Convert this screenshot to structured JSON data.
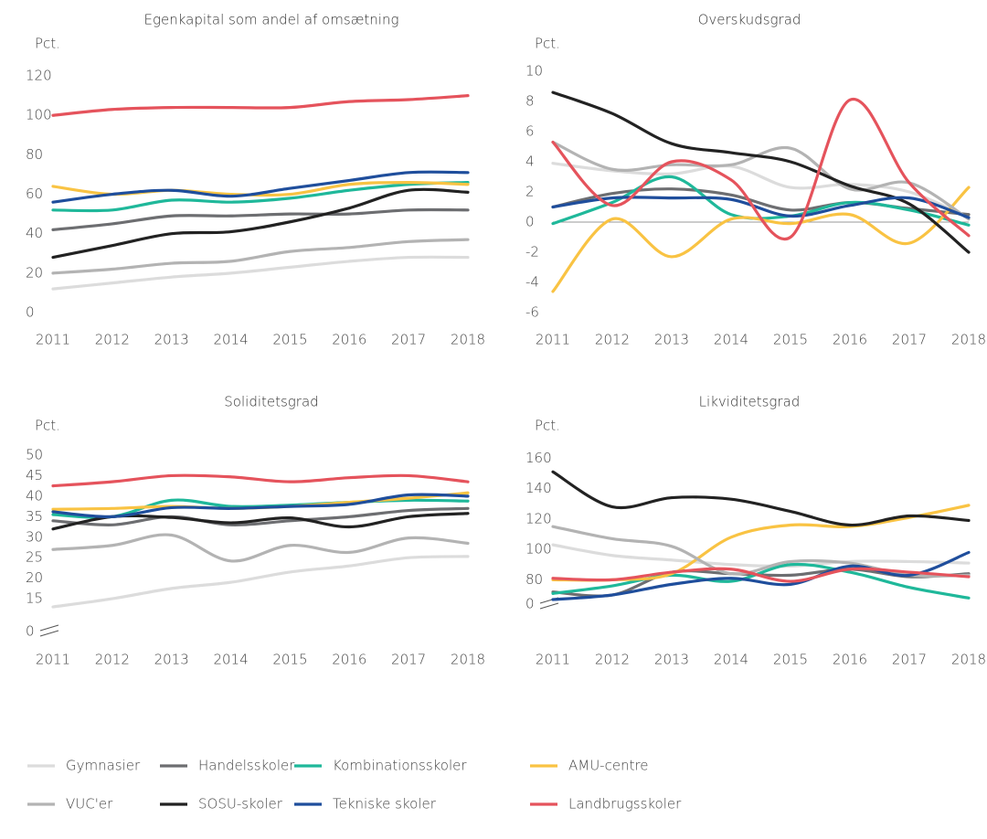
{
  "chart_data": [
    {
      "type": "line",
      "title": "Egenkapital som andel af omsætning",
      "ylabel": "Pct.",
      "x": [
        2011,
        2012,
        2013,
        2014,
        2015,
        2016,
        2017,
        2018
      ],
      "xlim": [
        2011,
        2018
      ],
      "ylim": [
        0,
        130
      ],
      "yticks": [
        0,
        20,
        40,
        60,
        80,
        100,
        120
      ],
      "series": [
        {
          "color": "#dcdcdc",
          "values": [
            12,
            15,
            18,
            20,
            23,
            26,
            28,
            28
          ]
        },
        {
          "color": "#6d6e71",
          "values": [
            42,
            45,
            49,
            49,
            50,
            50,
            52,
            52
          ]
        },
        {
          "color": "#1fb89a",
          "values": [
            52,
            52,
            57,
            56,
            58,
            62,
            65,
            66
          ]
        },
        {
          "color": "#f9c343",
          "values": [
            64,
            60,
            62,
            60,
            60,
            65,
            66,
            65
          ]
        },
        {
          "color": "#b3b3b3",
          "values": [
            20,
            22,
            25,
            26,
            31,
            33,
            36,
            37
          ]
        },
        {
          "color": "#222222",
          "values": [
            28,
            34,
            40,
            41,
            46,
            53,
            62,
            61
          ]
        },
        {
          "color": "#1f4e9c",
          "values": [
            56,
            60,
            62,
            59,
            63,
            67,
            71,
            71
          ]
        },
        {
          "color": "#e5535c",
          "values": [
            100,
            103,
            104,
            104,
            104,
            107,
            108,
            110
          ]
        }
      ]
    },
    {
      "type": "line",
      "title": "Overskudsgrad",
      "ylabel": "Pct.",
      "x": [
        2011,
        2012,
        2013,
        2014,
        2015,
        2016,
        2017,
        2018
      ],
      "xlim": [
        2011,
        2018
      ],
      "ylim": [
        -6,
        11
      ],
      "yticks": [
        -6,
        -4,
        -2,
        0,
        2,
        4,
        6,
        8,
        10
      ],
      "zero_line": true,
      "series": [
        {
          "color": "#dcdcdc",
          "values": [
            3.9,
            3.4,
            3.2,
            3.7,
            2.3,
            2.5,
            2.0,
            0.3
          ]
        },
        {
          "color": "#6d6e71",
          "values": [
            1.0,
            1.9,
            2.2,
            1.8,
            0.8,
            1.3,
            0.9,
            0.5
          ]
        },
        {
          "color": "#1fb89a",
          "values": [
            -0.1,
            1.3,
            3.0,
            0.5,
            0.4,
            1.3,
            0.8,
            -0.2
          ]
        },
        {
          "color": "#f9c343",
          "values": [
            -4.6,
            0.2,
            -2.3,
            0.2,
            -0.1,
            0.5,
            -1.4,
            2.3
          ]
        },
        {
          "color": "#b3b3b3",
          "values": [
            5.3,
            3.5,
            3.8,
            3.8,
            4.9,
            2.2,
            2.6,
            0.2
          ]
        },
        {
          "color": "#222222",
          "values": [
            8.6,
            7.2,
            5.2,
            4.6,
            4.0,
            2.4,
            1.2,
            -2.0
          ]
        },
        {
          "color": "#1f4e9c",
          "values": [
            1.0,
            1.6,
            1.6,
            1.5,
            0.4,
            1.1,
            1.6,
            0.3
          ]
        },
        {
          "color": "#e5535c",
          "values": [
            5.3,
            1.1,
            4.0,
            2.8,
            -1.0,
            8.1,
            2.6,
            -0.9
          ]
        }
      ]
    },
    {
      "type": "line",
      "title": "Soliditetsgrad",
      "ylabel": "Pct.",
      "x": [
        2011,
        2012,
        2013,
        2014,
        2015,
        2016,
        2017,
        2018
      ],
      "xlim": [
        2011,
        2018
      ],
      "ylim": [
        7,
        52
      ],
      "yticks": [
        0,
        15,
        20,
        25,
        30,
        35,
        40,
        45,
        50
      ],
      "axis_break": true,
      "series": [
        {
          "color": "#dcdcdc",
          "values": [
            13,
            15,
            17.5,
            19,
            21.5,
            23,
            25,
            25.3
          ]
        },
        {
          "color": "#6d6e71",
          "values": [
            34,
            33,
            35,
            33,
            34,
            35,
            36.5,
            37
          ]
        },
        {
          "color": "#1fb89a",
          "values": [
            35.5,
            35,
            39,
            37.5,
            37.8,
            38.5,
            39,
            38.8
          ]
        },
        {
          "color": "#f9c343",
          "values": [
            36.8,
            37,
            37.5,
            37,
            37.5,
            38.5,
            39.5,
            40.8
          ]
        },
        {
          "color": "#b3b3b3",
          "values": [
            27,
            28,
            30.5,
            24.2,
            28,
            26.3,
            29.8,
            28.5
          ]
        },
        {
          "color": "#222222",
          "values": [
            32,
            35,
            34.8,
            33.5,
            34.7,
            32.5,
            35,
            35.8
          ]
        },
        {
          "color": "#1f4e9c",
          "values": [
            36.2,
            35,
            37.2,
            37,
            37.5,
            38,
            40.3,
            40
          ]
        },
        {
          "color": "#e5535c",
          "values": [
            42.5,
            43.5,
            45,
            44.7,
            43.5,
            44.5,
            45,
            43.5
          ]
        }
      ]
    },
    {
      "type": "line",
      "title": "Likviditetsgrad",
      "ylabel": "Pct.",
      "x": [
        2011,
        2012,
        2013,
        2014,
        2015,
        2016,
        2017,
        2018
      ],
      "xlim": [
        2011,
        2018
      ],
      "ylim": [
        64,
        168
      ],
      "yticks": [
        0,
        80,
        100,
        120,
        140,
        160
      ],
      "axis_break": true,
      "series": [
        {
          "color": "#dcdcdc",
          "values": [
            103,
            96,
            93,
            90,
            89,
            92,
            92,
            91
          ]
        },
        {
          "color": "#6d6e71",
          "values": [
            72,
            70,
            85,
            84,
            83,
            87,
            82,
            84
          ]
        },
        {
          "color": "#1fb89a",
          "values": [
            71,
            76,
            83,
            79,
            90,
            85,
            75,
            68
          ]
        },
        {
          "color": "#f9c343",
          "values": [
            80,
            80,
            84,
            108,
            116,
            115,
            121,
            129
          ]
        },
        {
          "color": "#b3b3b3",
          "values": [
            115,
            107,
            102,
            84,
            92,
            91,
            83,
            83
          ]
        },
        {
          "color": "#222222",
          "values": [
            151,
            128,
            134,
            133,
            125,
            116,
            122,
            119
          ]
        },
        {
          "color": "#1f4e9c",
          "values": [
            67,
            70,
            77,
            81,
            77,
            89,
            83,
            98
          ]
        },
        {
          "color": "#e5535c",
          "values": [
            81,
            80,
            85,
            87,
            79,
            87,
            85,
            82
          ]
        }
      ]
    }
  ],
  "legend": [
    {
      "name": "Gymnasier",
      "color": "#dcdcdc"
    },
    {
      "name": "Handelsskoler",
      "color": "#6d6e71"
    },
    {
      "name": "Kombinationsskoler",
      "color": "#1fb89a"
    },
    {
      "name": "AMU-centre",
      "color": "#f9c343"
    },
    {
      "name": "VUC'er",
      "color": "#b3b3b3"
    },
    {
      "name": "SOSU-skoler",
      "color": "#222222"
    },
    {
      "name": "Tekniske skoler",
      "color": "#1f4e9c"
    },
    {
      "name": "Landbrugsskoler",
      "color": "#e5535c"
    }
  ]
}
